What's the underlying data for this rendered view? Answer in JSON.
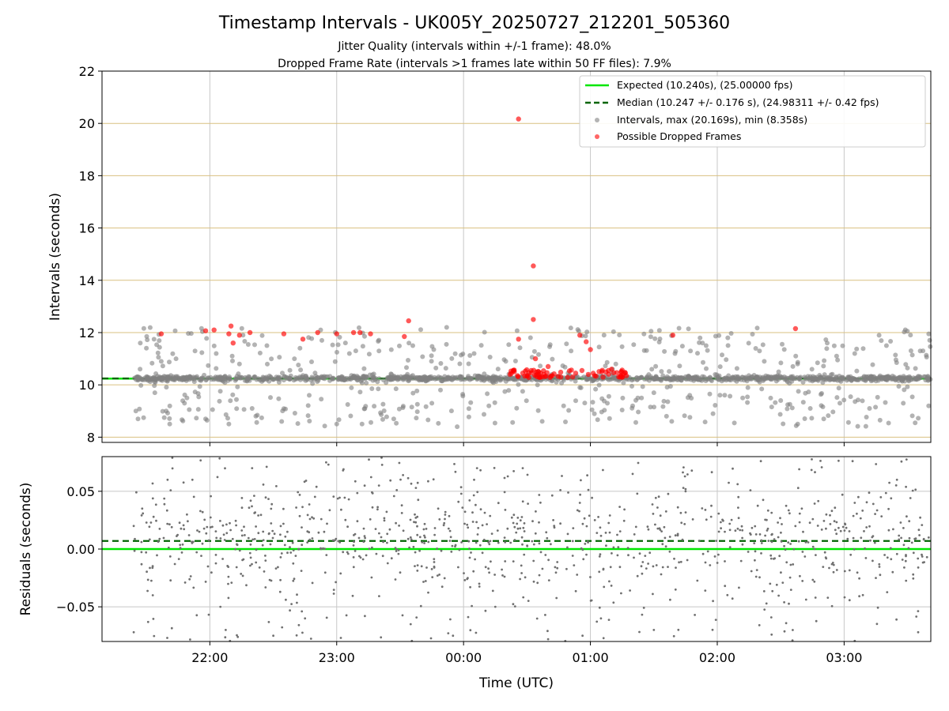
{
  "title": "Timestamp Intervals - UK005Y_20250727_212201_505360",
  "subtitle_1": "Jitter Quality (intervals within +/-1 frame): 48.0%",
  "subtitle_2": "Dropped Frame Rate (intervals >1 frames late within 50 FF files): 7.9%",
  "chart_data": [
    {
      "type": "scatter",
      "ylabel": "Intervals (seconds)",
      "xlabel": "",
      "ylim": [
        7.8,
        22
      ],
      "xlim": [
        "21:09",
        "03:41"
      ],
      "yticks": [
        8,
        10,
        12,
        14,
        16,
        18,
        20,
        22
      ],
      "xticks": [
        "22:00",
        "23:00",
        "00:00",
        "01:00",
        "02:00",
        "03:00"
      ],
      "grid": "vertical lines at hour ticks, horizontal goldenrod lines at y ticks",
      "legend_position": "top-right",
      "legend": [
        {
          "label": "Expected (10.240s), (25.00000 fps)",
          "style": "solid line",
          "color": "#00e600"
        },
        {
          "label": "Median (10.247 +/- 0.176 s), (24.98311 +/- 0.42 fps)",
          "style": "dashed line",
          "color": "#006400"
        },
        {
          "label": "Intervals, max (20.169s), min (8.358s)",
          "style": "marker",
          "color": "#808080"
        },
        {
          "label": "Possible Dropped Frames",
          "style": "marker",
          "color": "#ff0000"
        }
      ],
      "reference_lines": {
        "expected": 10.24,
        "median": 10.247
      },
      "series": [
        {
          "name": "Intervals, max (20.169s), min (8.358s)",
          "color": "#808080",
          "description": "about 2000 points from 21:24 to 03:41, dense band at 10.2-10.3 s with scatter between 8.36 and 12.2 s",
          "points": [
            [
              "21:25",
              9.0
            ],
            [
              "21:27",
              10.6
            ],
            [
              "21:30",
              11.4
            ],
            [
              "21:34",
              9.7
            ],
            [
              "21:37",
              10.9
            ],
            [
              "21:41",
              8.5
            ],
            [
              "21:44",
              11.0
            ],
            [
              "21:48",
              9.3
            ],
            [
              "21:53",
              11.3
            ],
            [
              "21:58",
              8.7
            ],
            [
              "22:03",
              11.2
            ],
            [
              "22:09",
              8.5
            ],
            [
              "22:14",
              10.8
            ],
            [
              "22:20",
              9.1
            ],
            [
              "22:27",
              11.5
            ],
            [
              "22:34",
              8.6
            ],
            [
              "22:40",
              11.0
            ],
            [
              "22:47",
              9.6
            ],
            [
              "22:53",
              11.7
            ],
            [
              "23:00",
              8.5
            ],
            [
              "23:06",
              11.2
            ],
            [
              "23:12",
              8.5
            ],
            [
              "23:20",
              11.3
            ],
            [
              "23:27",
              8.7
            ],
            [
              "23:36",
              11.5
            ],
            [
              "23:45",
              9.3
            ],
            [
              "23:52",
              12.2
            ],
            [
              "23:57",
              8.4
            ],
            [
              "00:05",
              11.2
            ],
            [
              "00:12",
              9.2
            ],
            [
              "00:20",
              10.9
            ],
            [
              "00:35",
              10.0
            ],
            [
              "00:45",
              10.3
            ],
            [
              "00:55",
              9.9
            ],
            [
              "01:08",
              9.3
            ],
            [
              "01:12",
              10.8
            ],
            [
              "01:20",
              9.2
            ],
            [
              "01:30",
              9.7
            ],
            [
              "01:40",
              11.2
            ],
            [
              "01:47",
              9.6
            ],
            [
              "01:53",
              11.6
            ],
            [
              "01:58",
              8.9
            ],
            [
              "02:05",
              11.8
            ],
            [
              "02:12",
              9.5
            ],
            [
              "02:20",
              11.3
            ],
            [
              "02:30",
              9.4
            ],
            [
              "02:38",
              10.8
            ],
            [
              "02:44",
              9.1
            ],
            [
              "02:52",
              11.6
            ],
            [
              "02:58",
              9.3
            ],
            [
              "03:05",
              11.2
            ],
            [
              "03:12",
              9.1
            ],
            [
              "03:20",
              11.5
            ],
            [
              "03:28",
              9.3
            ],
            [
              "03:36",
              11.3
            ],
            [
              "03:40",
              9.2
            ]
          ]
        },
        {
          "name": "Possible Dropped Frames",
          "color": "#ff0000",
          "points": [
            [
              "21:37",
              11.95
            ],
            [
              "21:58",
              12.07
            ],
            [
              "22:02",
              12.1
            ],
            [
              "22:09",
              11.95
            ],
            [
              "22:10",
              12.25
            ],
            [
              "22:11",
              11.6
            ],
            [
              "22:14",
              11.9
            ],
            [
              "22:19",
              12.0
            ],
            [
              "22:35",
              11.95
            ],
            [
              "22:44",
              11.75
            ],
            [
              "22:51",
              12.0
            ],
            [
              "23:00",
              11.95
            ],
            [
              "23:08",
              12.0
            ],
            [
              "23:11",
              12.0
            ],
            [
              "23:16",
              11.95
            ],
            [
              "23:32",
              11.85
            ],
            [
              "23:34",
              12.45
            ],
            [
              "00:26",
              20.17
            ],
            [
              "00:33",
              14.55
            ],
            [
              "00:33",
              12.5
            ],
            [
              "00:26",
              11.75
            ],
            [
              "00:34",
              11.0
            ],
            [
              "00:40",
              10.7
            ],
            [
              "00:55",
              11.9
            ],
            [
              "00:58",
              11.65
            ],
            [
              "01:00",
              11.35
            ],
            [
              "01:10",
              10.6
            ],
            [
              "01:39",
              11.9
            ],
            [
              "02:37",
              12.15
            ],
            [
              "00:22",
              10.4
            ],
            [
              "00:24",
              10.5
            ],
            [
              "00:28",
              10.45
            ],
            [
              "00:30",
              10.35
            ],
            [
              "00:32",
              10.55
            ],
            [
              "00:36",
              10.3
            ],
            [
              "00:38",
              10.4
            ],
            [
              "00:42",
              10.35
            ],
            [
              "00:46",
              10.3
            ],
            [
              "00:53",
              10.45
            ],
            [
              "00:56",
              10.55
            ],
            [
              "00:59",
              10.4
            ],
            [
              "01:02",
              10.35
            ],
            [
              "01:06",
              10.3
            ],
            [
              "01:14",
              10.3
            ],
            [
              "01:17",
              10.35
            ]
          ]
        }
      ]
    },
    {
      "type": "scatter",
      "ylabel": "Residuals (seconds)",
      "xlabel": "Time (UTC)",
      "ylim": [
        -0.08,
        0.08
      ],
      "yticks": [
        "0.05",
        "0.00",
        "−0.05"
      ],
      "ytick_values": [
        0.05,
        0.0,
        -0.05
      ],
      "xticks": [
        "22:00",
        "23:00",
        "00:00",
        "01:00",
        "02:00",
        "03:00"
      ],
      "grid": true,
      "reference_lines": {
        "expected": 0.0,
        "median": 0.007
      },
      "series": [
        {
          "color": "#808080",
          "description": "about 1100 residual points spread over -0.08 to 0.08 s, concentrated between -0.03 and 0.04 s",
          "points": [
            [
              "21:24",
              0.02
            ],
            [
              "21:24",
              -0.072
            ],
            [
              "21:28",
              0.035
            ],
            [
              "21:33",
              -0.04
            ],
            [
              "21:40",
              0.06
            ],
            [
              "21:55",
              0.015
            ],
            [
              "22:05",
              -0.05
            ],
            [
              "22:20",
              0.07
            ],
            [
              "22:30",
              -0.075
            ],
            [
              "22:45",
              -0.06
            ],
            [
              "22:55",
              0.075
            ],
            [
              "23:03",
              0.068
            ],
            [
              "23:20",
              0.055
            ],
            [
              "23:35",
              -0.065
            ],
            [
              "23:48",
              0.035
            ],
            [
              "23:55",
              -0.075
            ],
            [
              "00:05",
              0.06
            ],
            [
              "00:15",
              -0.05
            ],
            [
              "00:28",
              0.07
            ],
            [
              "00:40",
              -0.078
            ],
            [
              "00:55",
              0.04
            ],
            [
              "01:05",
              -0.06
            ],
            [
              "01:20",
              0.065
            ],
            [
              "01:30",
              -0.07
            ],
            [
              "01:45",
              0.05
            ],
            [
              "01:58",
              -0.045
            ],
            [
              "02:10",
              0.045
            ],
            [
              "02:25",
              -0.03
            ],
            [
              "02:40",
              0.035
            ],
            [
              "02:55",
              -0.02
            ],
            [
              "03:05",
              0.04
            ],
            [
              "03:15",
              -0.025
            ],
            [
              "03:25",
              0.06
            ],
            [
              "03:35",
              -0.072
            ],
            [
              "03:40",
              0.01
            ]
          ]
        }
      ]
    }
  ]
}
